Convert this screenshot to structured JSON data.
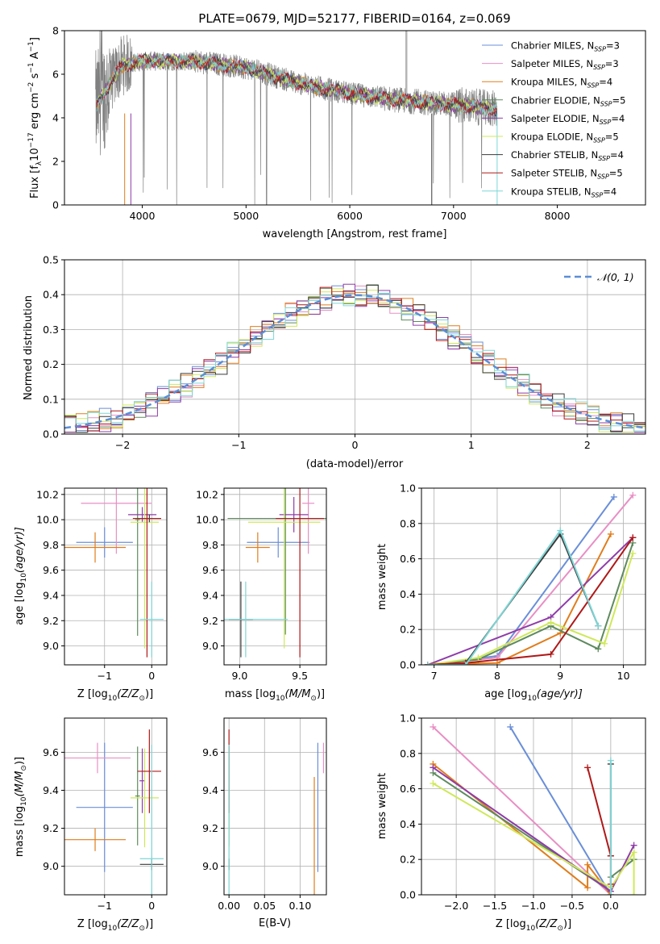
{
  "colors": [
    "#6a8fd8",
    "#e88fc4",
    "#e07d1c",
    "#5e8a5e",
    "#8e3ca8",
    "#cfe85a",
    "#3a3a3a",
    "#b01818",
    "#7fd6d6"
  ],
  "chart_data": [
    {
      "id": "spectrum",
      "type": "line",
      "title": "PLATE=0679, MJD=52177, FIBERID=0164, z=0.069",
      "xlabel": "wavelength [Angstrom, rest frame]",
      "ylabel": "Flux [f_λ10^-17 erg cm^-2 s^-1 A^-1]",
      "xlim": [
        3250,
        8850
      ],
      "ylim": [
        0,
        8
      ],
      "xticks": [
        4000,
        5000,
        6000,
        7000,
        8000
      ],
      "yticks": [
        0,
        2,
        4,
        6,
        8
      ],
      "data_color": "#808080",
      "data_profile": {
        "x": [
          3550,
          3800,
          4000,
          4500,
          5000,
          5500,
          6000,
          6500,
          7000,
          7420
        ],
        "y": [
          4.5,
          6.4,
          6.6,
          6.6,
          6.3,
          5.6,
          5.1,
          4.8,
          4.6,
          4.4
        ]
      },
      "legend_position": "upper right",
      "legend": [
        {
          "label": "Chabrier MILES, N",
          "sub": "SSP",
          "n": "=3"
        },
        {
          "label": "Salpeter MILES, N",
          "sub": "SSP",
          "n": "=3"
        },
        {
          "label": "Kroupa MILES, N",
          "sub": "SSP",
          "n": "=4"
        },
        {
          "label": "Chabrier ELODIE, N",
          "sub": "SSP",
          "n": "=5"
        },
        {
          "label": "Salpeter ELODIE, N",
          "sub": "SSP",
          "n": "=4"
        },
        {
          "label": "Kroupa ELODIE, N",
          "sub": "SSP",
          "n": "=5"
        },
        {
          "label": "Chabrier STELIB, N",
          "sub": "SSP",
          "n": "=4"
        },
        {
          "label": "Salpeter STELIB, N",
          "sub": "SSP",
          "n": "=5"
        },
        {
          "label": "Kroupa STELIB, N",
          "sub": "SSP",
          "n": "=4"
        }
      ]
    },
    {
      "id": "residuals",
      "type": "line",
      "xlabel": "(data-model)/error",
      "ylabel": "Normed distribution",
      "xlim": [
        -2.5,
        2.5
      ],
      "ylim": [
        0,
        0.5
      ],
      "xticks": [
        -2,
        -1,
        0,
        1,
        2
      ],
      "yticks": [
        0.0,
        0.1,
        0.2,
        0.3,
        0.4,
        0.5
      ],
      "grid": true,
      "legend_position": "upper right",
      "legend": [
        "𝒩(0, 1)"
      ],
      "bin_width": 0.1,
      "reference_curve": "gaussian mean 0 sigma 1"
    },
    {
      "id": "age-vs-Z",
      "type": "scatter",
      "xlabel": "Z [log10(Z/Z☉)]",
      "ylabel": "age  [log10(age/yr)]",
      "xlim": [
        -1.85,
        0.32
      ],
      "ylim": [
        8.85,
        10.25
      ],
      "xticks": [
        -1,
        0
      ],
      "yticks": [
        9.0,
        9.2,
        9.4,
        9.6,
        9.8,
        10.0,
        10.2
      ],
      "grid": true,
      "series": [
        {
          "x": -1.0,
          "y": 9.82,
          "xerr": 0.6,
          "yerr": 0.12
        },
        {
          "x": -0.75,
          "y": 10.13,
          "xerr": 0.75,
          "yerr": 0.4
        },
        {
          "x": -1.2,
          "y": 9.78,
          "xerr": 0.65,
          "yerr": 0.12
        },
        {
          "x": -0.3,
          "y": 10.0,
          "xerr": 0.05,
          "yerr": 0.92
        },
        {
          "x": -0.2,
          "y": 10.04,
          "xerr": 0.3,
          "yerr": 0.06
        },
        {
          "x": -0.15,
          "y": 9.98,
          "xerr": 0.3,
          "yerr": 1.0
        },
        {
          "x": -0.05,
          "y": 10.01,
          "xerr": 0.25,
          "yerr": 0.03
        },
        {
          "x": -0.1,
          "y": 10.01,
          "xerr": 0.3,
          "yerr": 1.1
        },
        {
          "x": 0.0,
          "y": 9.21,
          "xerr": 0.25,
          "yerr": 0.3
        }
      ]
    },
    {
      "id": "age-vs-mass",
      "type": "scatter",
      "xlabel": "mass [log10(M/M☉)]",
      "ylabel": "",
      "xlim": [
        8.87,
        9.72
      ],
      "ylim": [
        8.85,
        10.25
      ],
      "xticks": [
        9.0,
        9.5
      ],
      "yticks": [
        9.0,
        9.2,
        9.4,
        9.6,
        9.8,
        10.0,
        10.2
      ],
      "grid": true,
      "series": [
        {
          "x": 9.32,
          "y": 9.82,
          "xerr": 0.26,
          "yerr": 0.12
        },
        {
          "x": 9.57,
          "y": 10.13,
          "xerr": 0.05,
          "yerr": 0.4
        },
        {
          "x": 9.15,
          "y": 9.78,
          "xerr": 0.1,
          "yerr": 0.12
        },
        {
          "x": 9.38,
          "y": 10.01,
          "xerr": 0.48,
          "yerr": 0.92
        },
        {
          "x": 9.45,
          "y": 10.04,
          "xerr": 0.12,
          "yerr": 0.14
        },
        {
          "x": 9.37,
          "y": 9.98,
          "xerr": 0.3,
          "yerr": 1.0
        },
        {
          "x": 9.01,
          "y": 9.21,
          "xerr": 0.1,
          "yerr": 0.3
        },
        {
          "x": 9.5,
          "y": 10.01,
          "xerr": 0.2,
          "yerr": 1.1
        },
        {
          "x": 9.05,
          "y": 9.21,
          "xerr": 0.35,
          "yerr": 0.3
        }
      ]
    },
    {
      "id": "weight-vs-age",
      "type": "line",
      "xlabel": "age  [log10(age/yr)]",
      "ylabel": "mass weight",
      "xlim": [
        6.8,
        10.35
      ],
      "ylim": [
        0,
        1
      ],
      "xticks": [
        7,
        8,
        9,
        10
      ],
      "yticks": [
        0.0,
        0.2,
        0.4,
        0.6,
        0.8,
        1.0
      ],
      "grid": true,
      "series": [
        {
          "x": [
            6.9,
            8.0,
            9.85
          ],
          "y": [
            0.0,
            0.05,
            0.95
          ]
        },
        {
          "x": [
            6.9,
            8.0,
            10.15
          ],
          "y": [
            0.0,
            0.04,
            0.96
          ]
        },
        {
          "x": [
            6.9,
            8.0,
            9.0,
            9.8
          ],
          "y": [
            0.0,
            0.01,
            0.18,
            0.74
          ]
        },
        {
          "x": [
            6.9,
            7.7,
            8.85,
            9.6,
            10.15
          ],
          "y": [
            0.0,
            0.03,
            0.22,
            0.09,
            0.69
          ]
        },
        {
          "x": [
            6.9,
            8.85,
            10.15
          ],
          "y": [
            0.0,
            0.27,
            0.72
          ]
        },
        {
          "x": [
            6.9,
            7.7,
            8.85,
            9.7,
            10.15
          ],
          "y": [
            0.0,
            0.04,
            0.24,
            0.12,
            0.63
          ]
        },
        {
          "x": [
            6.9,
            7.5,
            9.0,
            9.6
          ],
          "y": [
            0.0,
            0.01,
            0.74,
            0.22
          ]
        },
        {
          "x": [
            6.9,
            7.5,
            8.85,
            10.15
          ],
          "y": [
            0.0,
            0.01,
            0.06,
            0.72
          ]
        },
        {
          "x": [
            6.9,
            7.5,
            9.0,
            9.6
          ],
          "y": [
            0.0,
            0.0,
            0.76,
            0.22
          ]
        }
      ]
    },
    {
      "id": "mass-vs-Z",
      "type": "scatter",
      "xlabel": "Z [log10(Z/Z☉)]",
      "ylabel": "mass [log10(M/M☉)]",
      "xlim": [
        -1.85,
        0.32
      ],
      "ylim": [
        8.85,
        9.78
      ],
      "xticks": [
        -1,
        0
      ],
      "yticks": [
        9.0,
        9.2,
        9.4,
        9.6
      ],
      "grid": true,
      "series": [
        {
          "x": -1.0,
          "y": 9.31,
          "xerr": 0.6,
          "yerr": 0.34
        },
        {
          "x": -1.15,
          "y": 9.57,
          "xerr": 0.7,
          "yerr": 0.08
        },
        {
          "x": -1.2,
          "y": 9.14,
          "xerr": 0.65,
          "yerr": 0.06
        },
        {
          "x": -0.3,
          "y": 9.37,
          "xerr": 0.05,
          "yerr": 0.26
        },
        {
          "x": -0.2,
          "y": 9.45,
          "xerr": 0.06,
          "yerr": 0.17
        },
        {
          "x": -0.15,
          "y": 9.36,
          "xerr": 0.3,
          "yerr": 0.26
        },
        {
          "x": 0.0,
          "y": 9.01,
          "xerr": 0.25,
          "yerr": 0.03
        },
        {
          "x": -0.05,
          "y": 9.5,
          "xerr": 0.25,
          "yerr": 0.22
        },
        {
          "x": 0.0,
          "y": 9.04,
          "xerr": 0.25,
          "yerr": 0.6
        }
      ]
    },
    {
      "id": "mass-vs-EBV",
      "type": "scatter",
      "xlabel": "E(B-V)",
      "ylabel": "",
      "xlim": [
        -0.007,
        0.137
      ],
      "ylim": [
        8.85,
        9.78
      ],
      "xticks": [
        0.0,
        0.05,
        0.1
      ],
      "yticks": [
        9.0,
        9.2,
        9.4,
        9.6
      ],
      "grid": true,
      "series": [
        {
          "x": 0.125,
          "y": 9.31,
          "yerr": 0.34
        },
        {
          "x": 0.133,
          "y": 9.57,
          "yerr": 0.08
        },
        {
          "x": 0.12,
          "y": 9.14,
          "yerr": 0.33
        },
        {
          "x": 0.0,
          "y": 9.37,
          "yerr": 0.26
        },
        {
          "x": 0.0,
          "y": 9.45,
          "yerr": 0.17
        },
        {
          "x": 0.0,
          "y": 9.36,
          "yerr": 0.26
        },
        {
          "x": 0.0,
          "y": 9.01,
          "yerr": 0.03
        },
        {
          "x": 0.0,
          "y": 9.5,
          "yerr": 0.22
        },
        {
          "x": 0.0,
          "y": 9.04,
          "yerr": 0.6
        }
      ]
    },
    {
      "id": "weight-vs-Z",
      "type": "line",
      "xlabel": "Z [log10(Z/Z☉)]",
      "ylabel": "mass weight",
      "xlim": [
        -2.45,
        0.45
      ],
      "ylim": [
        0,
        1
      ],
      "xticks": [
        -2.0,
        -1.5,
        -1.0,
        -0.5,
        0.0
      ],
      "yticks": [
        0.0,
        0.2,
        0.4,
        0.6,
        0.8,
        1.0
      ],
      "grid": true,
      "series": [
        {
          "x": [
            -1.3,
            0.0
          ],
          "y": [
            0.95,
            0.0
          ]
        },
        {
          "x": [
            -2.3,
            0.0
          ],
          "y": [
            0.95,
            0.0
          ]
        },
        {
          "x": [
            -2.3,
            -0.3,
            -0.3,
            0.0
          ],
          "y": [
            0.74,
            0.04,
            0.17,
            0.0
          ]
        },
        {
          "x": [
            -2.3,
            0.0,
            0.0,
            0.3
          ],
          "y": [
            0.69,
            0.02,
            0.1,
            0.2
          ]
        },
        {
          "x": [
            -2.3,
            0.0,
            0.3
          ],
          "y": [
            0.72,
            0.02,
            0.28
          ]
        },
        {
          "x": [
            -2.3,
            0.0,
            0.3,
            0.3
          ],
          "y": [
            0.63,
            0.04,
            0.24,
            0.0
          ]
        },
        {
          "x": [
            0.0,
            0.0
          ],
          "y": [
            0.74,
            0.22
          ]
        },
        {
          "x": [
            -0.3,
            0.0,
            0.0
          ],
          "y": [
            0.72,
            0.22,
            0.06
          ]
        },
        {
          "x": [
            0.0,
            0.0
          ],
          "y": [
            0.76,
            0.0
          ]
        }
      ]
    }
  ]
}
